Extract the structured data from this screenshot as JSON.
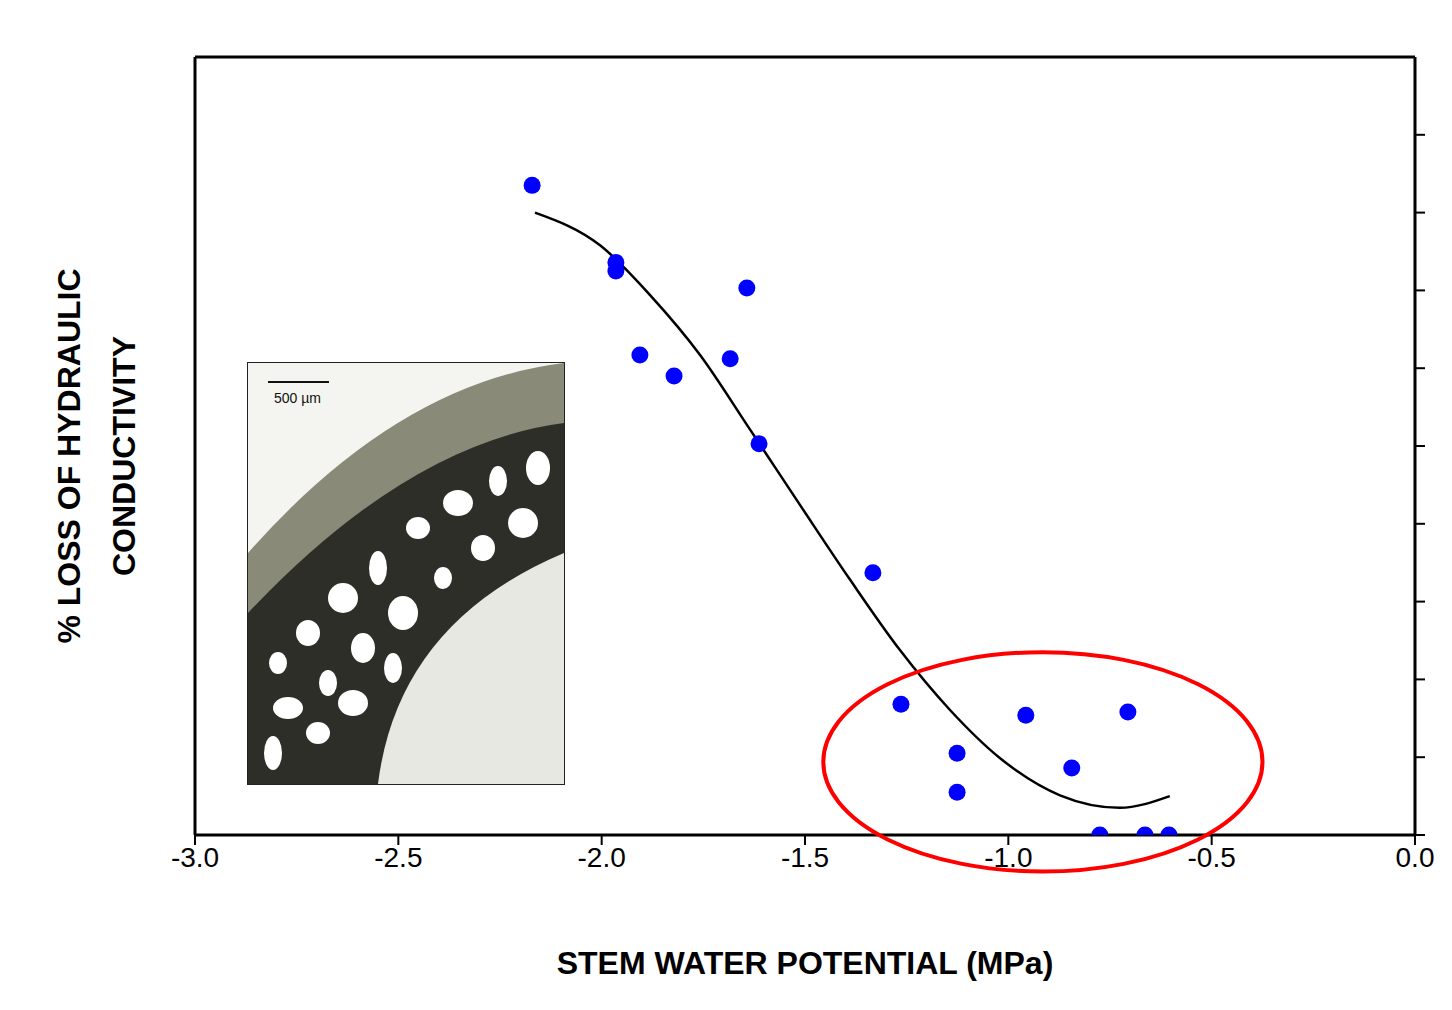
{
  "chart_data": {
    "type": "scatter",
    "x_label": "STEM WATER POTENTIAL (MPa)",
    "y_label": "% LOSS OF HYDRAULIC CONDUCTIVITY",
    "xlim": [
      -3,
      0
    ],
    "xticks": [
      {
        "value": -3,
        "label": "-3.0"
      },
      {
        "value": -2.5,
        "label": "-2.5"
      },
      {
        "value": -2,
        "label": "-2.0"
      },
      {
        "value": -1.5,
        "label": "-1.5"
      },
      {
        "value": -1,
        "label": "-1.0"
      },
      {
        "value": -0.5,
        "label": "-0.5"
      },
      {
        "value": 0,
        "label": "0.0"
      }
    ],
    "ylim": [
      0,
      100
    ],
    "yticks": [
      0,
      10,
      20,
      30,
      40,
      50,
      60,
      70,
      80,
      90
    ],
    "tick_labels": "x",
    "series": [
      {
        "type": "scatter",
        "color": "#0000ff",
        "marker": "circle",
        "x": [
          -2.171,
          -1.965,
          -1.965,
          -1.906,
          -1.822,
          -1.643,
          -1.684,
          -1.613,
          -1.333,
          -1.264,
          -1.126,
          -1.126,
          -0.957,
          -0.706,
          -0.844,
          -0.775,
          -0.664,
          -0.605
        ],
        "values": [
          83.5,
          73.6,
          72.5,
          61.7,
          59.0,
          70.3,
          61.2,
          50.3,
          33.7,
          16.8,
          10.5,
          5.5,
          15.4,
          15.8,
          8.6,
          0,
          0,
          0
        ]
      },
      {
        "type": "line",
        "color": "#000000",
        "line_style": "solid",
        "x": [
          -2.164,
          -2.004,
          -1.881,
          -1.758,
          -1.635,
          -1.512,
          -1.389,
          -1.267,
          -1.144,
          -1.021,
          -0.873,
          -0.726,
          -0.603
        ],
        "values": [
          80.0,
          75.8,
          69.4,
          61.7,
          52.1,
          42.4,
          32.8,
          23.8,
          16.1,
          9.9,
          5.1,
          3.5,
          5.0
        ]
      }
    ],
    "annotations": [
      {
        "type": "ellipse",
        "color": "#ff0000",
        "x": -0.915,
        "y": 9.4,
        "x_radius": 0.54,
        "y_radius": 14.1
      }
    ],
    "inset": {
      "type": "micrograph",
      "scale_label": "500 µm"
    }
  }
}
